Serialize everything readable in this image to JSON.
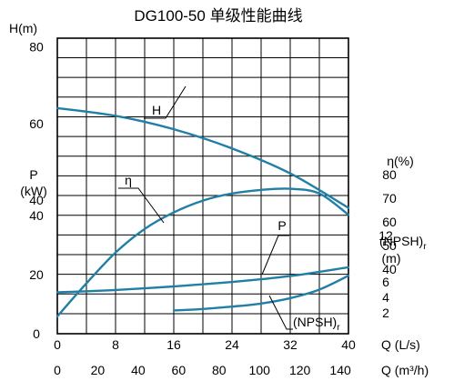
{
  "chart_data": {
    "type": "line",
    "title": "DG100-50  单级性能曲线",
    "x_primary": {
      "label": "Q (L/s)",
      "range": [
        0,
        40
      ],
      "ticks": [
        0,
        8,
        16,
        24,
        32,
        40
      ]
    },
    "x_secondary": {
      "label": "Q (m³/h)",
      "ticks": [
        0,
        20,
        40,
        60,
        80,
        100,
        120,
        140
      ]
    },
    "axis_H": {
      "label": "H (m)",
      "range": [
        30,
        80
      ],
      "ticks": [
        40,
        60,
        80
      ]
    },
    "axis_P": {
      "label": "P (kW)",
      "range": [
        0,
        50
      ],
      "ticks": [
        0,
        20,
        40
      ]
    },
    "axis_eta": {
      "label": "η(%)",
      "range": [
        20,
        80
      ],
      "ticks": [
        60,
        70,
        80
      ]
    },
    "axis_eta_lower_ticks": [
      40,
      50
    ],
    "axis_npsh": {
      "label_main": "(NPSH)",
      "label_sub": "r",
      "label_unit": "(m)",
      "range": [
        0,
        12
      ],
      "ticks": [
        2,
        4,
        6,
        12
      ]
    },
    "series": [
      {
        "name": "H",
        "axis": "H",
        "x": [
          0,
          8,
          16,
          24,
          32,
          40
        ],
        "y": [
          64,
          62,
          58.5,
          53.5,
          47,
          38
        ]
      },
      {
        "name": "η",
        "axis": "eta",
        "x": [
          0,
          4,
          8,
          12,
          16,
          20,
          24,
          28,
          32,
          36,
          40
        ],
        "y": [
          20,
          34,
          47,
          57,
          64,
          69,
          72,
          73.5,
          74,
          72,
          63
        ]
      },
      {
        "name": "P",
        "axis": "P",
        "x": [
          0,
          8,
          16,
          24,
          32,
          40
        ],
        "y": [
          14,
          14.8,
          16,
          17.5,
          19.5,
          22.5
        ]
      },
      {
        "name": "(NPSH)r",
        "axis": "npsh",
        "x": [
          16,
          20,
          24,
          28,
          32,
          36,
          40
        ],
        "y": [
          2.3,
          2.5,
          2.8,
          3.2,
          3.9,
          5.0,
          6.8
        ]
      }
    ],
    "curve_labels": {
      "H": "H",
      "eta": "η",
      "P": "P",
      "npsh_main": "(NPSH)",
      "npsh_sub": "r"
    },
    "grid": true,
    "colors": {
      "curve": "#1f7fa6",
      "grid": "#000000"
    }
  }
}
